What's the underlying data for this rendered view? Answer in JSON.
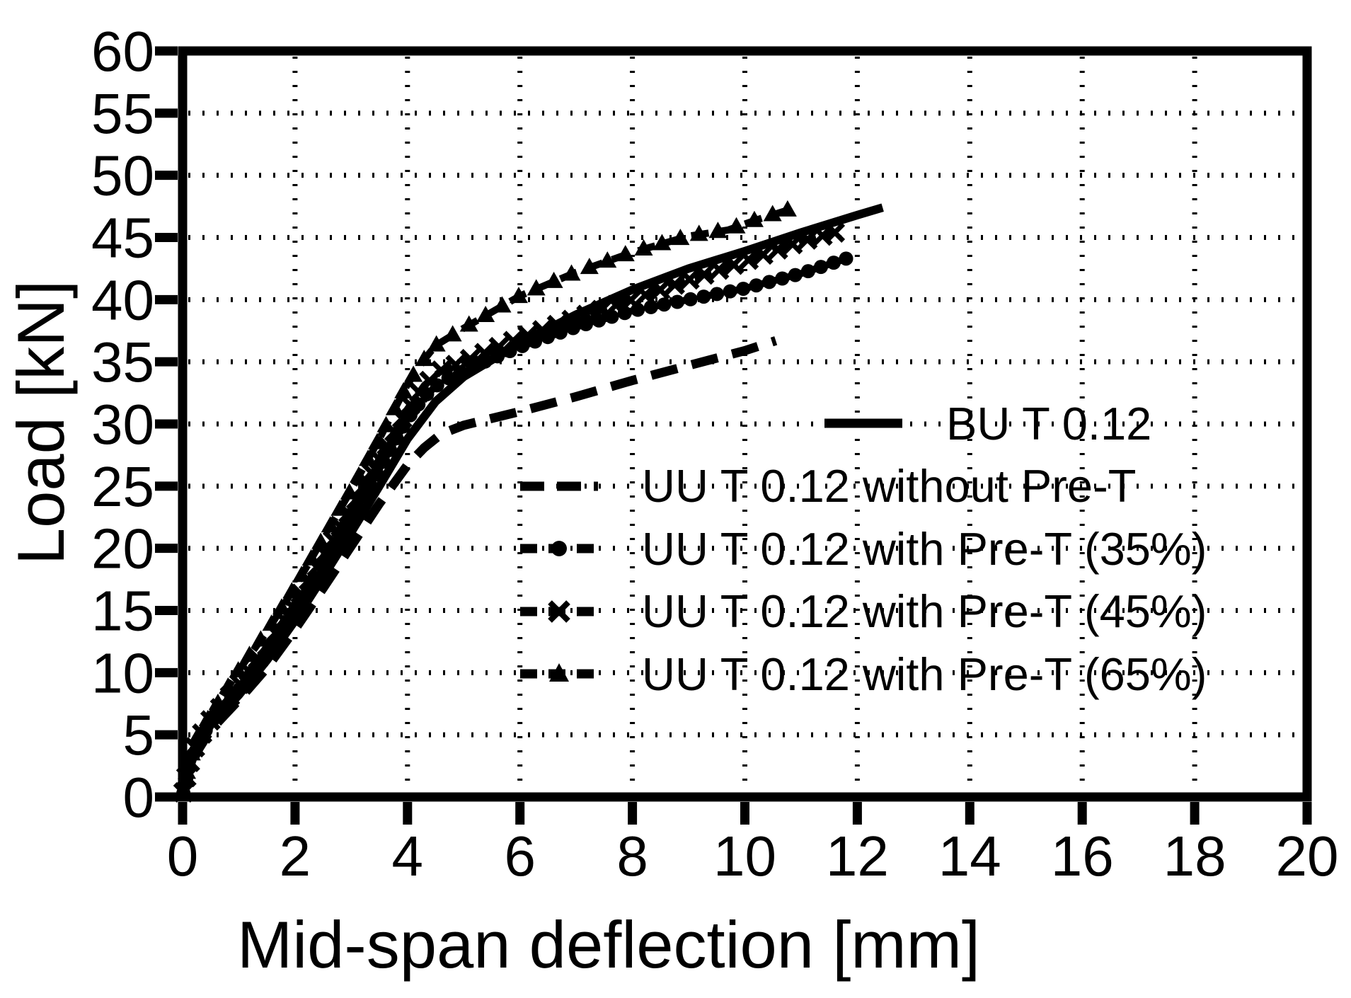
{
  "chart_data": {
    "type": "line",
    "title": "",
    "xlabel": "Mid-span deflection [mm]",
    "ylabel": "Load [kN]",
    "xlim": [
      0,
      20
    ],
    "ylim": [
      0,
      60
    ],
    "xticks": [
      0,
      2,
      4,
      6,
      8,
      10,
      12,
      14,
      16,
      18,
      20
    ],
    "yticks": [
      0,
      5,
      10,
      15,
      20,
      25,
      30,
      35,
      40,
      45,
      50,
      55,
      60
    ],
    "grid": "dotted",
    "legend_position": "inside-center-right",
    "colors": {
      "foreground": "#000000",
      "background": "#ffffff"
    },
    "series": [
      {
        "name": "BU T 0.12",
        "line_style": "solid",
        "marker": "none",
        "points": [
          [
            0,
            0
          ],
          [
            0.1,
            2
          ],
          [
            0.25,
            4
          ],
          [
            0.5,
            5.8
          ],
          [
            1,
            8.2
          ],
          [
            1.5,
            11
          ],
          [
            2,
            14.2
          ],
          [
            2.5,
            17.7
          ],
          [
            3,
            21.3
          ],
          [
            3.5,
            25
          ],
          [
            4,
            28.8
          ],
          [
            4.5,
            31.8
          ],
          [
            5,
            33.8
          ],
          [
            6,
            36.5
          ],
          [
            7,
            38.8
          ],
          [
            8,
            40.8
          ],
          [
            9,
            42.5
          ],
          [
            10,
            43.9
          ],
          [
            11,
            45.4
          ],
          [
            12,
            46.8
          ],
          [
            12.45,
            47.4
          ]
        ]
      },
      {
        "name": "UU T 0.12 without Pre-T",
        "line_style": "dashed",
        "marker": "none",
        "points": [
          [
            0,
            0
          ],
          [
            0.1,
            1.8
          ],
          [
            0.25,
            3.6
          ],
          [
            0.5,
            5.4
          ],
          [
            1,
            7.8
          ],
          [
            1.5,
            10.4
          ],
          [
            2,
            13.5
          ],
          [
            2.5,
            16.8
          ],
          [
            3,
            20.2
          ],
          [
            3.5,
            23.6
          ],
          [
            4,
            26.7
          ],
          [
            4.3,
            28.1
          ],
          [
            4.6,
            29.2
          ],
          [
            5,
            29.9
          ],
          [
            6,
            31
          ],
          [
            7,
            32.2
          ],
          [
            8,
            33.5
          ],
          [
            9,
            34.7
          ],
          [
            10,
            35.9
          ],
          [
            10.55,
            36.7
          ]
        ]
      },
      {
        "name": "UU T 0.12 with Pre-T (35%)",
        "line_style": "dash-marker",
        "marker": "circle",
        "points": [
          [
            0,
            0
          ],
          [
            0.1,
            2.2
          ],
          [
            0.25,
            4.2
          ],
          [
            0.5,
            6
          ],
          [
            1,
            8.6
          ],
          [
            1.5,
            11.6
          ],
          [
            2,
            15
          ],
          [
            2.5,
            18.6
          ],
          [
            3,
            22.4
          ],
          [
            3.5,
            26.4
          ],
          [
            4,
            30.4
          ],
          [
            4.3,
            32.2
          ],
          [
            4.6,
            33.4
          ],
          [
            5,
            34.3
          ],
          [
            6,
            36.2
          ],
          [
            7,
            37.8
          ],
          [
            8,
            39.1
          ],
          [
            9,
            40
          ],
          [
            10,
            40.9
          ],
          [
            11,
            42.1
          ],
          [
            11.8,
            43.3
          ]
        ]
      },
      {
        "name": "UU T 0.12 with Pre-T (45%)",
        "line_style": "dash-marker",
        "marker": "x",
        "points": [
          [
            0,
            0
          ],
          [
            0.1,
            2.4
          ],
          [
            0.25,
            4.4
          ],
          [
            0.5,
            6.2
          ],
          [
            1,
            9
          ],
          [
            1.5,
            12.1
          ],
          [
            2,
            15.6
          ],
          [
            2.5,
            19.3
          ],
          [
            3,
            23.2
          ],
          [
            3.5,
            27.2
          ],
          [
            4,
            31.2
          ],
          [
            4.3,
            33.1
          ],
          [
            4.6,
            34.3
          ],
          [
            5,
            35
          ],
          [
            6,
            36.9
          ],
          [
            7,
            38.5
          ],
          [
            8,
            40
          ],
          [
            9,
            41.6
          ],
          [
            10,
            43.1
          ],
          [
            11,
            44.7
          ],
          [
            11.6,
            45.4
          ]
        ]
      },
      {
        "name": "UU T 0.12 with Pre-T (65%)",
        "line_style": "dash-marker",
        "marker": "triangle",
        "points": [
          [
            0,
            0
          ],
          [
            0.1,
            2.6
          ],
          [
            0.25,
            4.7
          ],
          [
            0.5,
            6.6
          ],
          [
            1,
            10.2
          ],
          [
            1.5,
            13.3
          ],
          [
            2,
            16.9
          ],
          [
            2.5,
            20.8
          ],
          [
            3,
            24.7
          ],
          [
            3.5,
            28.8
          ],
          [
            4,
            33.2
          ],
          [
            4.3,
            35.2
          ],
          [
            4.5,
            36.3
          ],
          [
            5,
            37.7
          ],
          [
            6,
            40.3
          ],
          [
            7,
            42.2
          ],
          [
            8,
            43.8
          ],
          [
            9,
            45.1
          ],
          [
            9.7,
            45.6
          ],
          [
            10.2,
            46.4
          ],
          [
            10.76,
            47.2
          ]
        ]
      }
    ]
  }
}
